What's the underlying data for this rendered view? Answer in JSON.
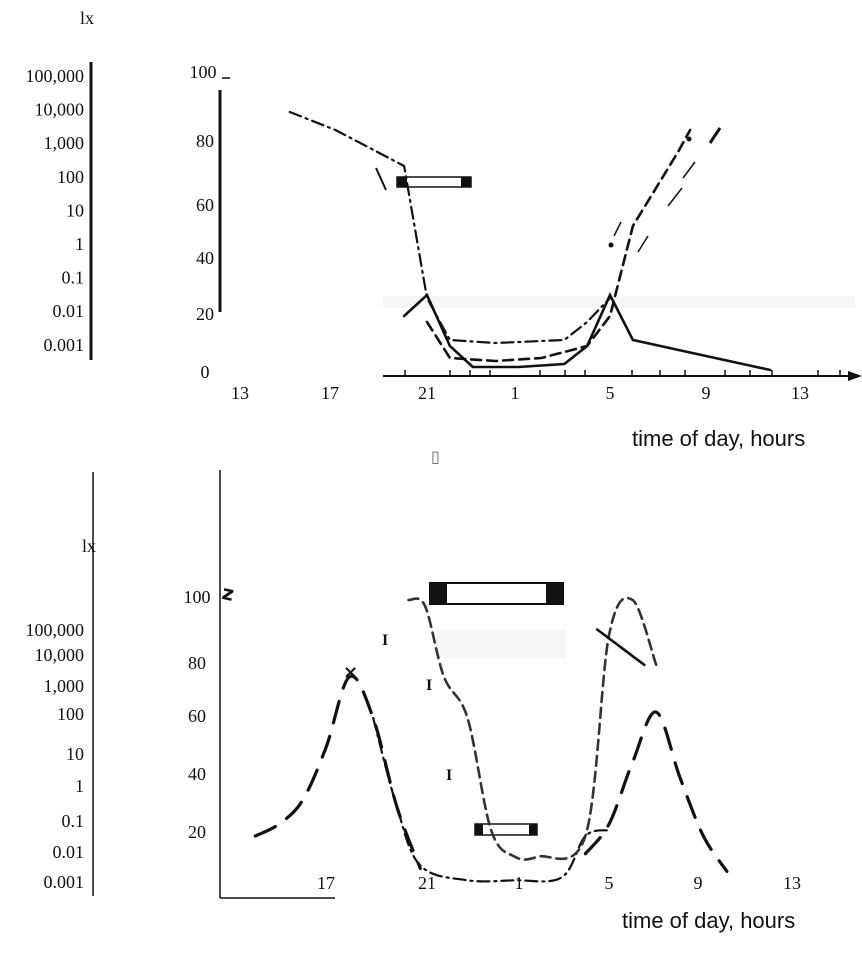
{
  "chart_data": [
    {
      "type": "line",
      "panel": "upper",
      "lux_unit": "lx",
      "lux_ticks": [
        "100,000",
        "10,000",
        "1,000",
        "100",
        "10",
        "1",
        "0.1",
        "0.01",
        "0.001"
      ],
      "y_ticks": [
        "100",
        "80",
        "60",
        "40",
        "20",
        "0"
      ],
      "x_ticks": [
        "13",
        "17",
        "21",
        "1",
        "5",
        "9",
        "13"
      ],
      "xlabel": "time of day, hours",
      "ylim": [
        0,
        100
      ],
      "series": [
        {
          "style": "solid",
          "x": [
            20,
            21,
            22,
            23,
            1,
            3,
            4,
            5,
            6,
            9,
            12
          ],
          "y": [
            20,
            27,
            10,
            3,
            3,
            4,
            10,
            27,
            12,
            7,
            2
          ]
        },
        {
          "style": "dash-dot",
          "x": [
            15,
            17,
            20,
            21,
            22,
            24,
            27,
            28,
            29
          ],
          "y": [
            88,
            82,
            70,
            26,
            12,
            11,
            12,
            18,
            26
          ]
        },
        {
          "style": "dashed",
          "x": [
            21,
            22,
            24,
            26,
            28,
            29,
            30,
            32,
            32.5
          ],
          "y": [
            18,
            6,
            5,
            6,
            10,
            20,
            50,
            75,
            82
          ]
        }
      ]
    },
    {
      "type": "line",
      "panel": "lower",
      "lux_unit": "lx",
      "lux_ticks": [
        "100,000",
        "10,000",
        "1,000",
        "100",
        "10",
        "1",
        "0.1",
        "0.01",
        "0.001"
      ],
      "y_ticks": [
        "100",
        "80",
        "60",
        "40",
        "20"
      ],
      "x_ticks": [
        "17",
        "21",
        "1",
        "5",
        "9",
        "13"
      ],
      "xlabel": "time of day, hours",
      "ylim": [
        0,
        105
      ],
      "series": [
        {
          "style": "long-dash",
          "x": [
            14,
            15,
            16,
            17,
            18,
            19,
            20,
            21
          ],
          "y": [
            20,
            24,
            32,
            50,
            74,
            60,
            30,
            9
          ]
        },
        {
          "style": "dash-dot",
          "x": [
            19,
            20,
            21,
            23,
            25,
            27,
            28,
            29
          ],
          "y": [
            60,
            30,
            10,
            5,
            5,
            6,
            20,
            22
          ]
        },
        {
          "style": "dashed",
          "x": [
            20.5,
            21.2,
            22,
            23,
            24,
            25,
            26,
            28,
            29,
            30,
            31
          ],
          "y": [
            100,
            98,
            74,
            60,
            22,
            13,
            13,
            20,
            88,
            100,
            78
          ]
        },
        {
          "style": "solid",
          "x": [
            28.5,
            30.5
          ],
          "y": [
            90,
            78
          ]
        },
        {
          "style": "long-dash",
          "x": [
            28,
            29,
            30,
            31,
            32,
            33,
            34
          ],
          "y": [
            14,
            24,
            45,
            62,
            40,
            20,
            8
          ]
        }
      ]
    }
  ]
}
